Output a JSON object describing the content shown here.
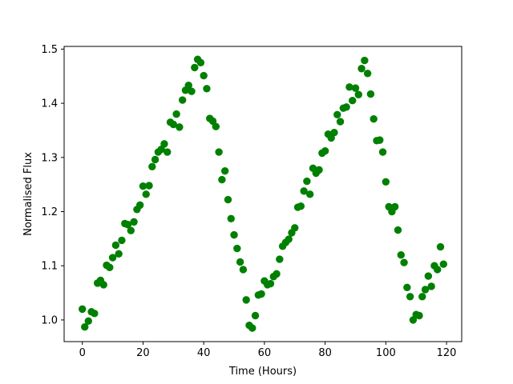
{
  "chart_data": {
    "type": "scatter",
    "title": "",
    "xlabel": "Time (Hours)",
    "ylabel": "Normalised Flux",
    "xlim": [
      -6,
      125
    ],
    "ylim": [
      0.96,
      1.505
    ],
    "xticks": [
      0,
      20,
      40,
      60,
      80,
      100,
      120
    ],
    "yticks": [
      1.0,
      1.1,
      1.2,
      1.3,
      1.4,
      1.5
    ],
    "xtick_labels": [
      "0",
      "20",
      "40",
      "60",
      "80",
      "100",
      "120"
    ],
    "ytick_labels": [
      "1.0",
      "1.1",
      "1.2",
      "1.3",
      "1.4",
      "1.5"
    ],
    "grid": false,
    "legend": "none",
    "marker_color": "#008000",
    "series": [
      {
        "x": [
          0,
          0.8,
          2,
          3,
          4,
          5,
          6,
          7,
          8,
          9,
          10,
          11,
          12,
          13,
          14,
          15,
          16,
          17,
          18,
          19,
          20,
          21,
          22,
          23,
          24,
          25,
          26,
          27,
          28,
          29,
          30,
          31,
          32,
          33,
          34,
          35,
          36,
          37,
          38,
          39,
          40,
          41,
          42,
          43,
          44,
          45,
          46,
          47,
          48,
          49,
          50,
          51,
          52,
          53,
          54,
          55,
          56,
          57,
          58,
          59,
          60,
          61,
          62,
          63,
          64,
          65,
          66,
          67,
          68,
          69,
          70,
          71,
          72,
          73,
          74,
          75,
          76,
          77,
          78,
          79,
          80,
          81,
          82,
          83,
          84,
          85,
          86,
          87,
          88,
          89,
          90,
          91,
          92,
          93,
          94,
          95,
          96,
          97,
          98,
          99,
          100,
          101,
          102,
          103,
          104,
          105,
          106,
          107,
          108,
          109,
          110,
          111,
          112,
          113,
          114,
          115,
          116,
          117,
          118,
          119
        ],
        "y": [
          1.02,
          0.987,
          0.998,
          1.015,
          1.012,
          1.068,
          1.073,
          1.065,
          1.101,
          1.097,
          1.115,
          1.138,
          1.122,
          1.147,
          1.178,
          1.176,
          1.165,
          1.181,
          1.204,
          1.212,
          1.247,
          1.232,
          1.248,
          1.283,
          1.296,
          1.31,
          1.315,
          1.325,
          1.31,
          1.365,
          1.361,
          1.38,
          1.356,
          1.406,
          1.424,
          1.433,
          1.422,
          1.466,
          1.481,
          1.475,
          1.451,
          1.427,
          1.372,
          1.367,
          1.357,
          1.31,
          1.259,
          1.275,
          1.222,
          1.187,
          1.157,
          1.132,
          1.107,
          1.093,
          1.037,
          0.99,
          0.985,
          1.008,
          1.046,
          1.048,
          1.072,
          1.065,
          1.067,
          1.08,
          1.085,
          1.112,
          1.136,
          1.143,
          1.149,
          1.161,
          1.17,
          1.208,
          1.21,
          1.238,
          1.256,
          1.232,
          1.28,
          1.271,
          1.277,
          1.308,
          1.312,
          1.343,
          1.336,
          1.346,
          1.379,
          1.366,
          1.391,
          1.393,
          1.43,
          1.405,
          1.428,
          1.416,
          1.464,
          1.479,
          1.455,
          1.417,
          1.371,
          1.331,
          1.332,
          1.31,
          1.255,
          1.209,
          1.2,
          1.209,
          1.166,
          1.12,
          1.106,
          1.06,
          1.043,
          1.0,
          1.01,
          1.008,
          1.043,
          1.056,
          1.081,
          1.062,
          1.1,
          1.093,
          1.135,
          1.103
        ]
      }
    ]
  }
}
